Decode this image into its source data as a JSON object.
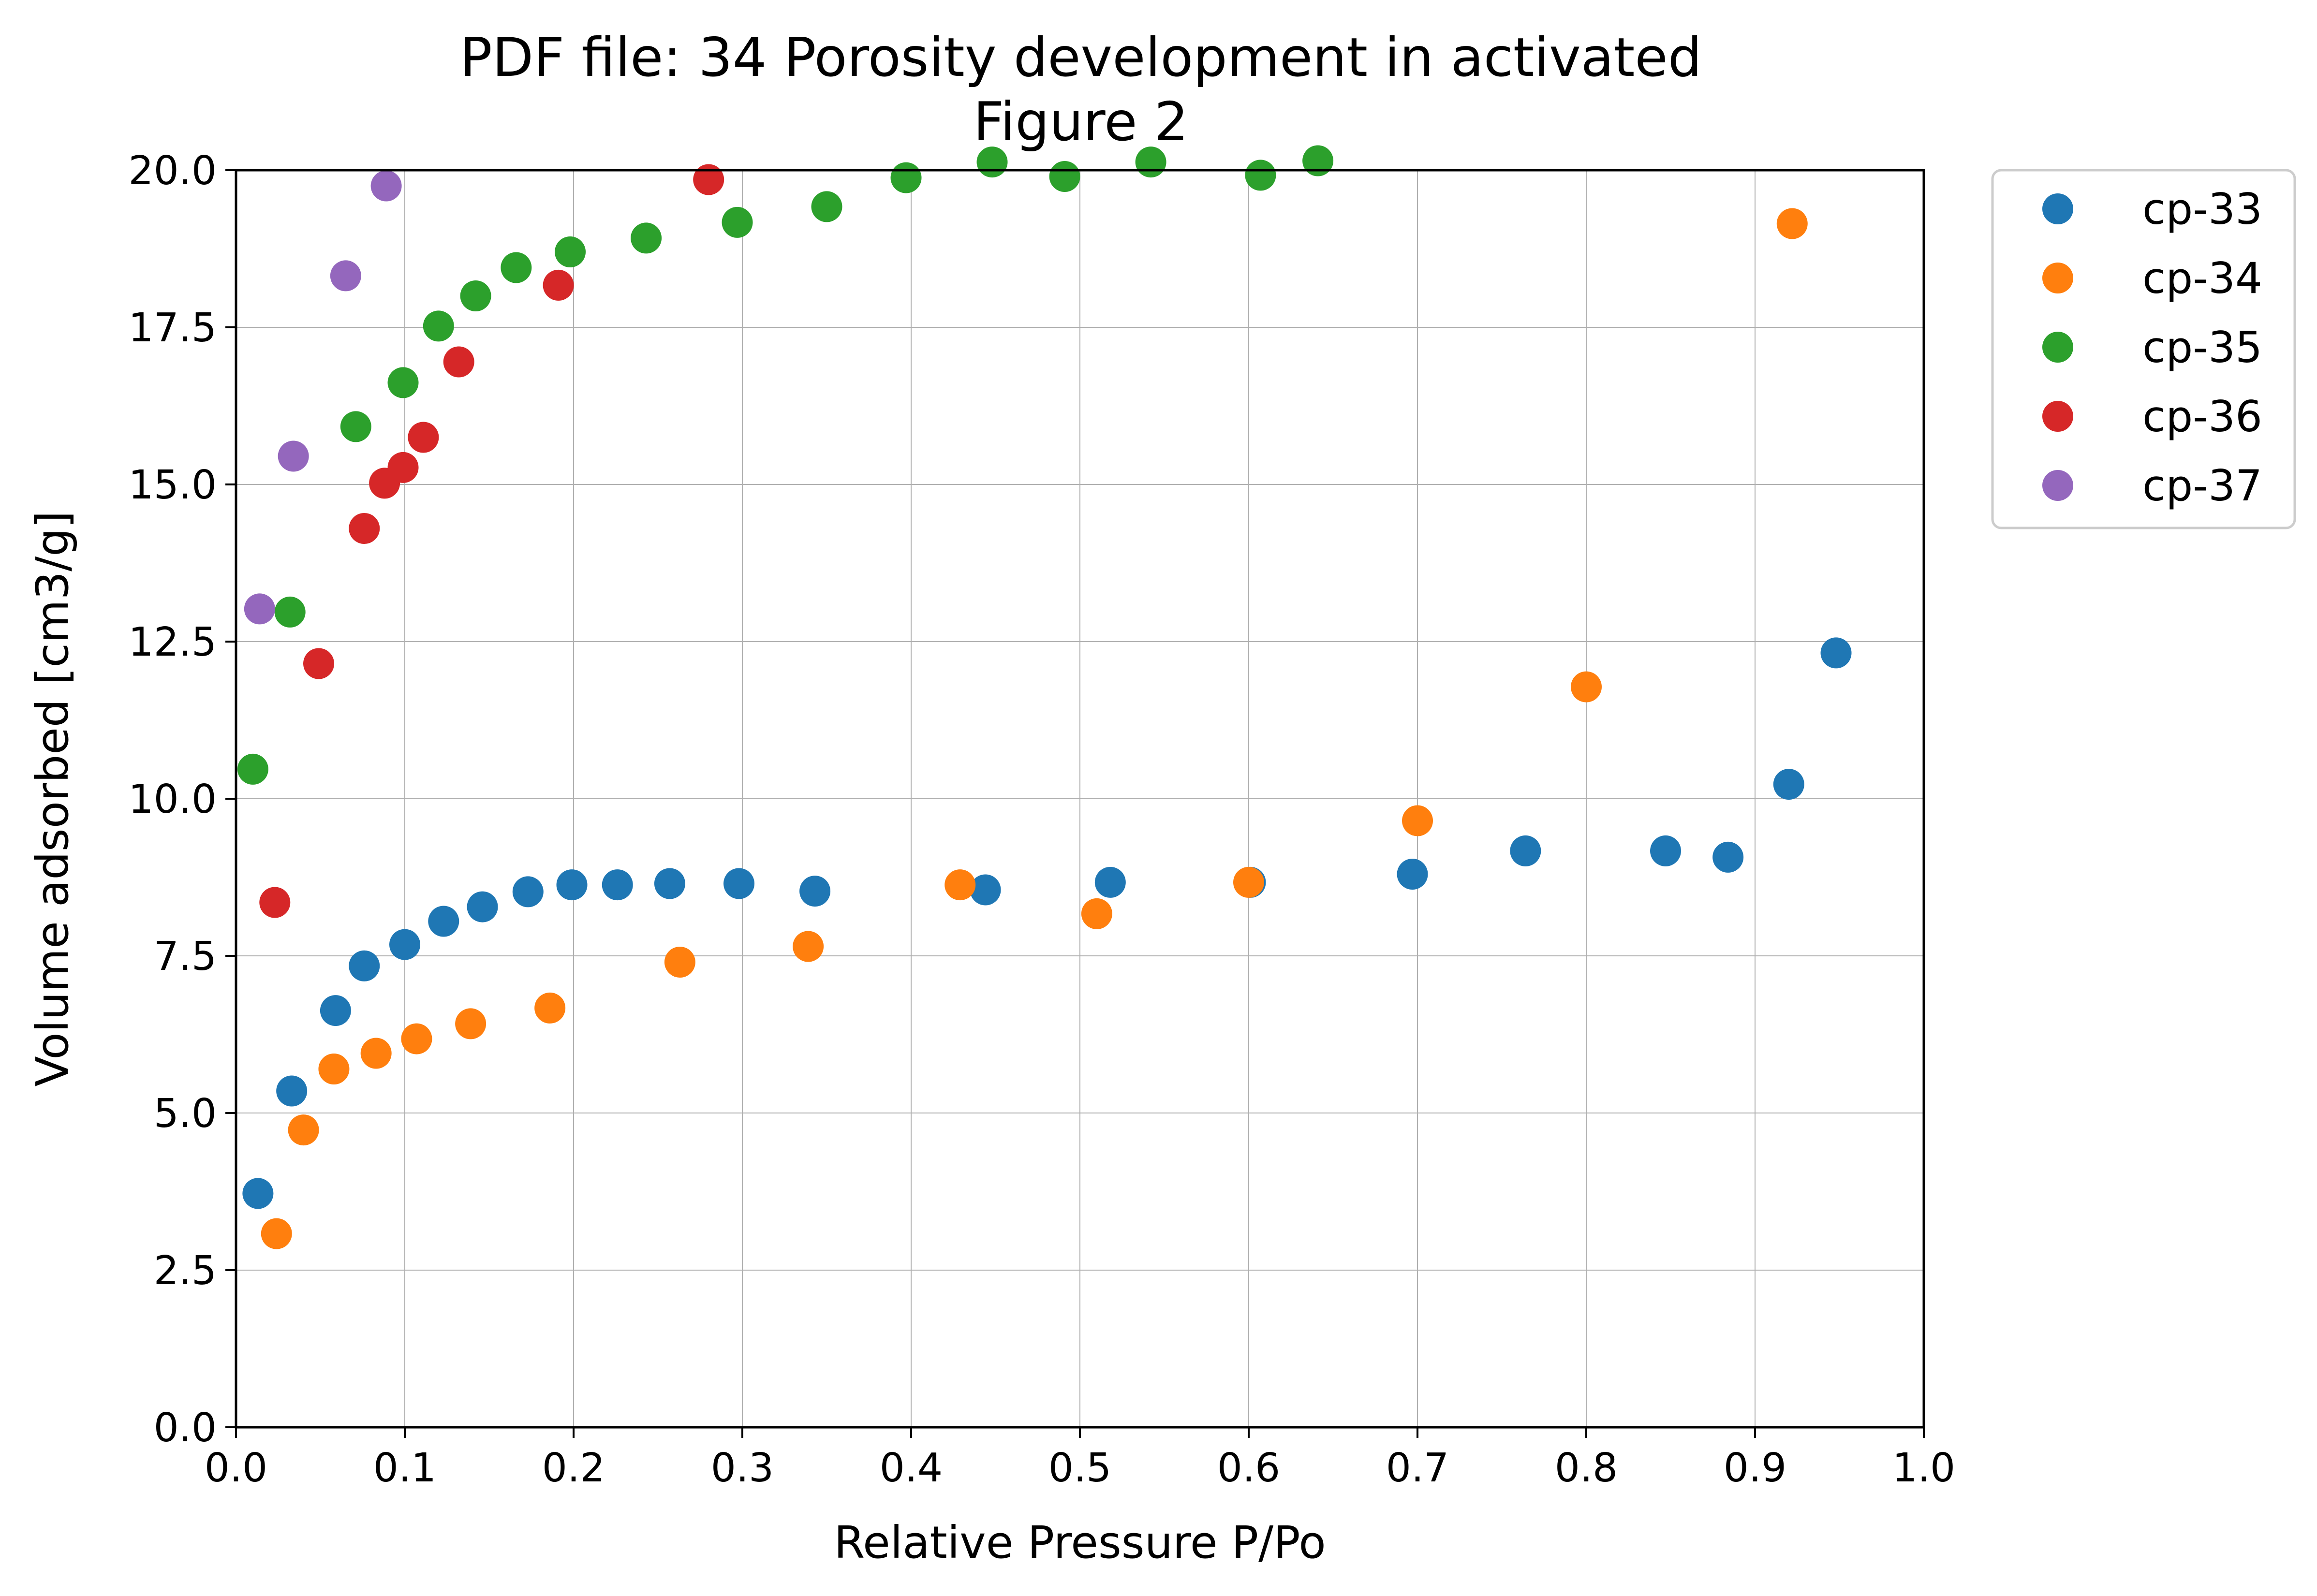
{
  "chart_data": {
    "type": "scatter",
    "title_lines": [
      "PDF file: 34 Porosity development in activated",
      "Figure 2"
    ],
    "xlabel": "Relative Pressure P/Po",
    "ylabel": "Volume adsorbed [cm3/g]",
    "xlim": [
      0,
      1
    ],
    "ylim": [
      0,
      20
    ],
    "x_ticks": [
      0.0,
      0.1,
      0.2,
      0.3,
      0.4,
      0.5,
      0.6,
      0.7,
      0.8,
      0.9,
      1.0
    ],
    "x_tick_labels": [
      "0.0",
      "0.1",
      "0.2",
      "0.3",
      "0.4",
      "0.5",
      "0.6",
      "0.7",
      "0.8",
      "0.9",
      "1.0"
    ],
    "y_ticks": [
      0,
      2.5,
      5,
      7.5,
      10,
      12.5,
      15,
      17.5,
      20
    ],
    "y_tick_labels": [
      "0.0",
      "2.5",
      "5.0",
      "7.5",
      "10.0",
      "12.5",
      "15.0",
      "17.5",
      "20.0"
    ],
    "grid": true,
    "legend_position": "outside-top-right",
    "series": [
      {
        "name": "cp-33",
        "color": "#1f77b4",
        "points": [
          [
            0.013,
            3.72
          ],
          [
            0.033,
            5.35
          ],
          [
            0.059,
            6.63
          ],
          [
            0.076,
            7.34
          ],
          [
            0.1,
            7.68
          ],
          [
            0.123,
            8.05
          ],
          [
            0.146,
            8.28
          ],
          [
            0.173,
            8.52
          ],
          [
            0.199,
            8.63
          ],
          [
            0.226,
            8.63
          ],
          [
            0.257,
            8.65
          ],
          [
            0.298,
            8.65
          ],
          [
            0.343,
            8.53
          ],
          [
            0.444,
            8.55
          ],
          [
            0.518,
            8.67
          ],
          [
            0.601,
            8.67
          ],
          [
            0.697,
            8.8
          ],
          [
            0.764,
            9.17
          ],
          [
            0.847,
            9.17
          ],
          [
            0.884,
            9.07
          ],
          [
            0.92,
            10.23
          ],
          [
            0.948,
            12.32
          ]
        ]
      },
      {
        "name": "cp-34",
        "color": "#ff7f0e",
        "points": [
          [
            0.024,
            3.08
          ],
          [
            0.04,
            4.73
          ],
          [
            0.058,
            5.7
          ],
          [
            0.083,
            5.95
          ],
          [
            0.107,
            6.18
          ],
          [
            0.139,
            6.42
          ],
          [
            0.186,
            6.67
          ],
          [
            0.263,
            7.4
          ],
          [
            0.339,
            7.65
          ],
          [
            0.429,
            8.63
          ],
          [
            0.51,
            8.17
          ],
          [
            0.6,
            8.67
          ],
          [
            0.7,
            9.65
          ],
          [
            0.8,
            11.78
          ],
          [
            0.922,
            19.15
          ]
        ]
      },
      {
        "name": "cp-35",
        "color": "#2ca02c",
        "points": [
          [
            0.01,
            10.47
          ],
          [
            0.032,
            12.97
          ],
          [
            0.071,
            15.92
          ],
          [
            0.099,
            16.62
          ],
          [
            0.12,
            17.52
          ],
          [
            0.142,
            18.0
          ],
          [
            0.166,
            18.45
          ],
          [
            0.198,
            18.7
          ],
          [
            0.243,
            18.92
          ],
          [
            0.297,
            19.17
          ],
          [
            0.35,
            19.42
          ],
          [
            0.397,
            19.88
          ],
          [
            0.448,
            20.13
          ],
          [
            0.491,
            19.9
          ],
          [
            0.542,
            20.13
          ],
          [
            0.607,
            19.92
          ],
          [
            0.641,
            20.15
          ]
        ]
      },
      {
        "name": "cp-36",
        "color": "#d62728",
        "points": [
          [
            0.023,
            8.35
          ],
          [
            0.049,
            12.15
          ],
          [
            0.076,
            14.3
          ],
          [
            0.088,
            15.02
          ],
          [
            0.099,
            15.27
          ],
          [
            0.111,
            15.75
          ],
          [
            0.132,
            16.95
          ],
          [
            0.191,
            18.17
          ],
          [
            0.28,
            19.85
          ]
        ]
      },
      {
        "name": "cp-37",
        "color": "#9467bd",
        "points": [
          [
            0.014,
            13.02
          ],
          [
            0.034,
            15.45
          ],
          [
            0.065,
            18.32
          ],
          [
            0.089,
            19.75
          ]
        ]
      }
    ]
  }
}
